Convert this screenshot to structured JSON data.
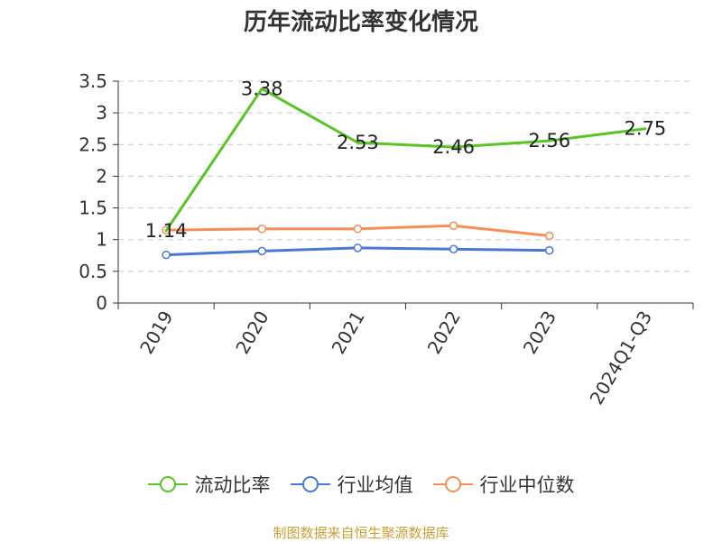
{
  "chart_data": {
    "type": "line",
    "title": "历年流动比率变化情况",
    "categories": [
      "2019",
      "2020",
      "2021",
      "2022",
      "2023",
      "2024Q1-Q3"
    ],
    "yticks": [
      "0",
      "0.5",
      "1",
      "1.5",
      "2",
      "2.5",
      "3",
      "3.5"
    ],
    "ylim": [
      0,
      3.5
    ],
    "grid": true,
    "legend_position": "bottom",
    "series": [
      {
        "name": "流动比率",
        "color": "#5ac328",
        "values": [
          1.14,
          3.38,
          2.53,
          2.46,
          2.56,
          2.75
        ],
        "labels": [
          "1.14",
          "3.38",
          "2.53",
          "2.46",
          "2.56",
          "2.75"
        ]
      },
      {
        "name": "行业均值",
        "color": "#4a78d2",
        "values": [
          0.76,
          0.82,
          0.87,
          0.85,
          0.83,
          null
        ]
      },
      {
        "name": "行业中位数",
        "color": "#f68e57",
        "values": [
          1.15,
          1.17,
          1.17,
          1.22,
          1.06,
          null
        ]
      }
    ]
  },
  "source": "制图数据来自恒生聚源数据库"
}
